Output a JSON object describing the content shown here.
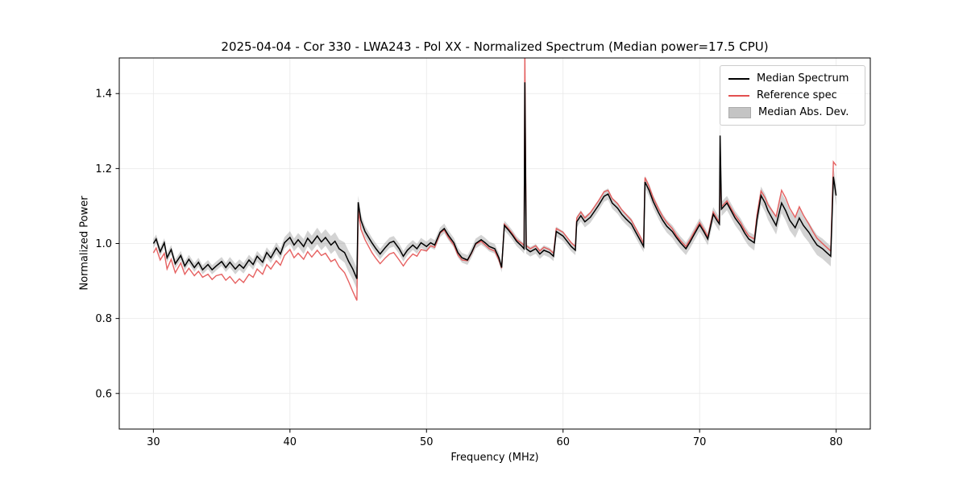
{
  "figure": {
    "title": "2025-04-04 - Cor 330 - LWA243 - Pol XX - Normalized Spectrum (Median power=17.5 CPU)",
    "xlabel": "Frequency (MHz)",
    "ylabel": "Normalized Power"
  },
  "legend": {
    "position": "upper right",
    "items": [
      {
        "label": "Median Spectrum",
        "type": "line",
        "color": "#000000"
      },
      {
        "label": "Reference spec",
        "type": "line",
        "color": "#e35050"
      },
      {
        "label": "Median Abs. Dev.",
        "type": "patch",
        "color": "#c4c4c4"
      }
    ]
  },
  "chart_data": {
    "type": "line",
    "title": "2025-04-04 - Cor 330 - LWA243 - Pol XX - Normalized Spectrum (Median power=17.5 CPU)",
    "xlabel": "Frequency (MHz)",
    "ylabel": "Normalized Power",
    "xlim": [
      27.5,
      82.5
    ],
    "ylim": [
      0.505,
      1.495
    ],
    "xticks": [
      30,
      40,
      50,
      60,
      70,
      80
    ],
    "yticks": [
      0.6,
      0.8,
      1.0,
      1.2,
      1.4
    ],
    "grid": true,
    "colors": {
      "median": "#000000",
      "reference": "#e35050",
      "band": "rgba(128,128,128,0.35)",
      "grid": "#e8e8e8"
    },
    "series_names": [
      "Median Spectrum",
      "Reference spec",
      "Median Abs. Dev."
    ],
    "columns": [
      "freq_mhz",
      "median",
      "reference",
      "mad_half_width"
    ],
    "points": [
      [
        30.0,
        1.0,
        0.975,
        0.012
      ],
      [
        30.2,
        1.012,
        0.988,
        0.012
      ],
      [
        30.5,
        0.978,
        0.956,
        0.012
      ],
      [
        30.8,
        1.002,
        0.974,
        0.012
      ],
      [
        31.0,
        0.962,
        0.932,
        0.012
      ],
      [
        31.3,
        0.984,
        0.958,
        0.012
      ],
      [
        31.6,
        0.946,
        0.922,
        0.012
      ],
      [
        32.0,
        0.968,
        0.948,
        0.012
      ],
      [
        32.3,
        0.94,
        0.918,
        0.012
      ],
      [
        32.6,
        0.958,
        0.934,
        0.012
      ],
      [
        33.0,
        0.936,
        0.914,
        0.012
      ],
      [
        33.3,
        0.95,
        0.926,
        0.012
      ],
      [
        33.6,
        0.93,
        0.91,
        0.012
      ],
      [
        34.0,
        0.944,
        0.918,
        0.012
      ],
      [
        34.3,
        0.93,
        0.904,
        0.012
      ],
      [
        34.6,
        0.94,
        0.914,
        0.012
      ],
      [
        35.0,
        0.952,
        0.918,
        0.012
      ],
      [
        35.3,
        0.936,
        0.902,
        0.012
      ],
      [
        35.6,
        0.95,
        0.912,
        0.014
      ],
      [
        36.0,
        0.932,
        0.894,
        0.014
      ],
      [
        36.3,
        0.944,
        0.906,
        0.014
      ],
      [
        36.6,
        0.934,
        0.896,
        0.014
      ],
      [
        37.0,
        0.956,
        0.918,
        0.014
      ],
      [
        37.3,
        0.944,
        0.91,
        0.014
      ],
      [
        37.6,
        0.966,
        0.932,
        0.014
      ],
      [
        38.0,
        0.95,
        0.918,
        0.014
      ],
      [
        38.3,
        0.976,
        0.944,
        0.014
      ],
      [
        38.6,
        0.962,
        0.932,
        0.014
      ],
      [
        39.0,
        0.988,
        0.954,
        0.015
      ],
      [
        39.3,
        0.972,
        0.942,
        0.015
      ],
      [
        39.6,
        1.002,
        0.968,
        0.015
      ],
      [
        40.0,
        1.016,
        0.984,
        0.017
      ],
      [
        40.3,
        0.996,
        0.962,
        0.017
      ],
      [
        40.6,
        1.01,
        0.974,
        0.018
      ],
      [
        41.0,
        0.992,
        0.958,
        0.02
      ],
      [
        41.3,
        1.014,
        0.978,
        0.021
      ],
      [
        41.6,
        1.0,
        0.964,
        0.021
      ],
      [
        42.0,
        1.02,
        0.982,
        0.022
      ],
      [
        42.3,
        1.004,
        0.968,
        0.022
      ],
      [
        42.6,
        1.016,
        0.974,
        0.022
      ],
      [
        43.0,
        0.996,
        0.952,
        0.024
      ],
      [
        43.3,
        1.006,
        0.958,
        0.024
      ],
      [
        43.6,
        0.986,
        0.938,
        0.025
      ],
      [
        44.0,
        0.976,
        0.922,
        0.027
      ],
      [
        44.3,
        0.952,
        0.898,
        0.028
      ],
      [
        44.6,
        0.932,
        0.872,
        0.028
      ],
      [
        44.9,
        0.906,
        0.848,
        0.028
      ],
      [
        45.0,
        1.11,
        1.088,
        0.018
      ],
      [
        45.2,
        1.062,
        1.038,
        0.016
      ],
      [
        45.5,
        1.032,
        1.01,
        0.015
      ],
      [
        46.0,
        1.002,
        0.976,
        0.014
      ],
      [
        46.3,
        0.986,
        0.96,
        0.014
      ],
      [
        46.6,
        0.972,
        0.946,
        0.014
      ],
      [
        47.0,
        0.99,
        0.962,
        0.014
      ],
      [
        47.3,
        1.002,
        0.972,
        0.014
      ],
      [
        47.6,
        1.006,
        0.976,
        0.014
      ],
      [
        48.0,
        0.986,
        0.956,
        0.014
      ],
      [
        48.3,
        0.966,
        0.94,
        0.014
      ],
      [
        48.6,
        0.982,
        0.956,
        0.014
      ],
      [
        49.0,
        0.996,
        0.972,
        0.013
      ],
      [
        49.3,
        0.986,
        0.966,
        0.013
      ],
      [
        49.6,
        1.002,
        0.984,
        0.013
      ],
      [
        50.0,
        0.992,
        0.98,
        0.013
      ],
      [
        50.3,
        1.002,
        0.994,
        0.013
      ],
      [
        50.6,
        0.996,
        0.99,
        0.013
      ],
      [
        51.0,
        1.03,
        1.028,
        0.013
      ],
      [
        51.3,
        1.04,
        1.036,
        0.013
      ],
      [
        51.6,
        1.022,
        1.016,
        0.013
      ],
      [
        52.0,
        1.002,
        0.996,
        0.013
      ],
      [
        52.3,
        0.976,
        0.97,
        0.013
      ],
      [
        52.6,
        0.962,
        0.956,
        0.013
      ],
      [
        53.0,
        0.956,
        0.954,
        0.013
      ],
      [
        53.3,
        0.976,
        0.974,
        0.013
      ],
      [
        53.6,
        1.0,
        0.998,
        0.013
      ],
      [
        54.0,
        1.01,
        1.006,
        0.013
      ],
      [
        54.3,
        1.002,
        0.996,
        0.013
      ],
      [
        54.6,
        0.992,
        0.986,
        0.013
      ],
      [
        55.0,
        0.986,
        0.98,
        0.013
      ],
      [
        55.3,
        0.962,
        0.956,
        0.013
      ],
      [
        55.5,
        0.936,
        0.934,
        0.013
      ],
      [
        55.7,
        1.048,
        1.052,
        0.013
      ],
      [
        56.0,
        1.036,
        1.04,
        0.013
      ],
      [
        56.3,
        1.022,
        1.026,
        0.013
      ],
      [
        56.6,
        1.006,
        1.01,
        0.013
      ],
      [
        57.0,
        0.992,
        1.0,
        0.013
      ],
      [
        57.15,
        0.986,
        0.994,
        0.013
      ],
      [
        57.2,
        1.43,
        1.52,
        0.3
      ],
      [
        57.3,
        0.986,
        0.994,
        0.013
      ],
      [
        57.6,
        0.978,
        0.986,
        0.013
      ],
      [
        58.0,
        0.986,
        0.994,
        0.013
      ],
      [
        58.3,
        0.972,
        0.98,
        0.013
      ],
      [
        58.6,
        0.982,
        0.99,
        0.013
      ],
      [
        59.0,
        0.976,
        0.984,
        0.013
      ],
      [
        59.3,
        0.966,
        0.974,
        0.013
      ],
      [
        59.5,
        1.032,
        1.04,
        0.013
      ],
      [
        60.0,
        1.02,
        1.03,
        0.013
      ],
      [
        60.3,
        1.006,
        1.016,
        0.013
      ],
      [
        60.6,
        0.992,
        1.002,
        0.013
      ],
      [
        60.9,
        0.982,
        0.992,
        0.013
      ],
      [
        61.0,
        1.058,
        1.068,
        0.015
      ],
      [
        61.3,
        1.074,
        1.084,
        0.015
      ],
      [
        61.6,
        1.058,
        1.068,
        0.015
      ],
      [
        62.0,
        1.07,
        1.082,
        0.015
      ],
      [
        62.3,
        1.086,
        1.098,
        0.015
      ],
      [
        62.6,
        1.102,
        1.114,
        0.015
      ],
      [
        63.0,
        1.126,
        1.138,
        0.015
      ],
      [
        63.3,
        1.132,
        1.142,
        0.015
      ],
      [
        63.6,
        1.108,
        1.12,
        0.015
      ],
      [
        64.0,
        1.094,
        1.106,
        0.015
      ],
      [
        64.3,
        1.078,
        1.09,
        0.015
      ],
      [
        64.6,
        1.066,
        1.078,
        0.015
      ],
      [
        65.0,
        1.052,
        1.062,
        0.015
      ],
      [
        65.3,
        1.032,
        1.042,
        0.015
      ],
      [
        65.6,
        1.012,
        1.022,
        0.015
      ],
      [
        65.9,
        0.992,
        1.0,
        0.015
      ],
      [
        66.0,
        1.164,
        1.176,
        0.017
      ],
      [
        66.3,
        1.142,
        1.152,
        0.017
      ],
      [
        66.6,
        1.112,
        1.122,
        0.017
      ],
      [
        67.0,
        1.082,
        1.092,
        0.017
      ],
      [
        67.3,
        1.062,
        1.072,
        0.017
      ],
      [
        67.6,
        1.046,
        1.056,
        0.017
      ],
      [
        68.0,
        1.032,
        1.04,
        0.017
      ],
      [
        68.3,
        1.016,
        1.022,
        0.017
      ],
      [
        68.6,
        1.002,
        1.008,
        0.017
      ],
      [
        69.0,
        0.986,
        0.992,
        0.017
      ],
      [
        69.3,
        1.004,
        1.01,
        0.017
      ],
      [
        69.6,
        1.024,
        1.03,
        0.017
      ],
      [
        70.0,
        1.05,
        1.056,
        0.017
      ],
      [
        70.3,
        1.032,
        1.038,
        0.017
      ],
      [
        70.6,
        1.012,
        1.018,
        0.017
      ],
      [
        71.0,
        1.078,
        1.084,
        0.019
      ],
      [
        71.3,
        1.06,
        1.066,
        0.019
      ],
      [
        71.45,
        1.052,
        1.058,
        0.019
      ],
      [
        71.5,
        1.288,
        1.2,
        0.06
      ],
      [
        71.6,
        1.092,
        1.098,
        0.019
      ],
      [
        72.0,
        1.108,
        1.114,
        0.019
      ],
      [
        72.3,
        1.088,
        1.094,
        0.019
      ],
      [
        72.6,
        1.068,
        1.076,
        0.019
      ],
      [
        73.0,
        1.048,
        1.056,
        0.019
      ],
      [
        73.3,
        1.028,
        1.036,
        0.019
      ],
      [
        73.6,
        1.012,
        1.02,
        0.019
      ],
      [
        74.0,
        1.002,
        1.012,
        0.021
      ],
      [
        74.2,
        1.064,
        1.076,
        0.024
      ],
      [
        74.5,
        1.128,
        1.14,
        0.024
      ],
      [
        74.8,
        1.108,
        1.122,
        0.024
      ],
      [
        75.0,
        1.088,
        1.104,
        0.024
      ],
      [
        75.3,
        1.068,
        1.088,
        0.024
      ],
      [
        75.6,
        1.048,
        1.072,
        0.024
      ],
      [
        76.0,
        1.108,
        1.142,
        0.027
      ],
      [
        76.3,
        1.088,
        1.122,
        0.027
      ],
      [
        76.6,
        1.062,
        1.094,
        0.027
      ],
      [
        77.0,
        1.042,
        1.07,
        0.027
      ],
      [
        77.3,
        1.068,
        1.098,
        0.027
      ],
      [
        77.6,
        1.048,
        1.076,
        0.027
      ],
      [
        78.0,
        1.03,
        1.052,
        0.027
      ],
      [
        78.3,
        1.012,
        1.032,
        0.027
      ],
      [
        78.6,
        0.996,
        1.014,
        0.027
      ],
      [
        79.0,
        0.986,
        1.0,
        0.027
      ],
      [
        79.3,
        0.976,
        0.99,
        0.027
      ],
      [
        79.6,
        0.966,
        0.98,
        0.027
      ],
      [
        79.8,
        1.178,
        1.218,
        0.028
      ],
      [
        80.0,
        1.128,
        1.208,
        0.028
      ]
    ]
  }
}
